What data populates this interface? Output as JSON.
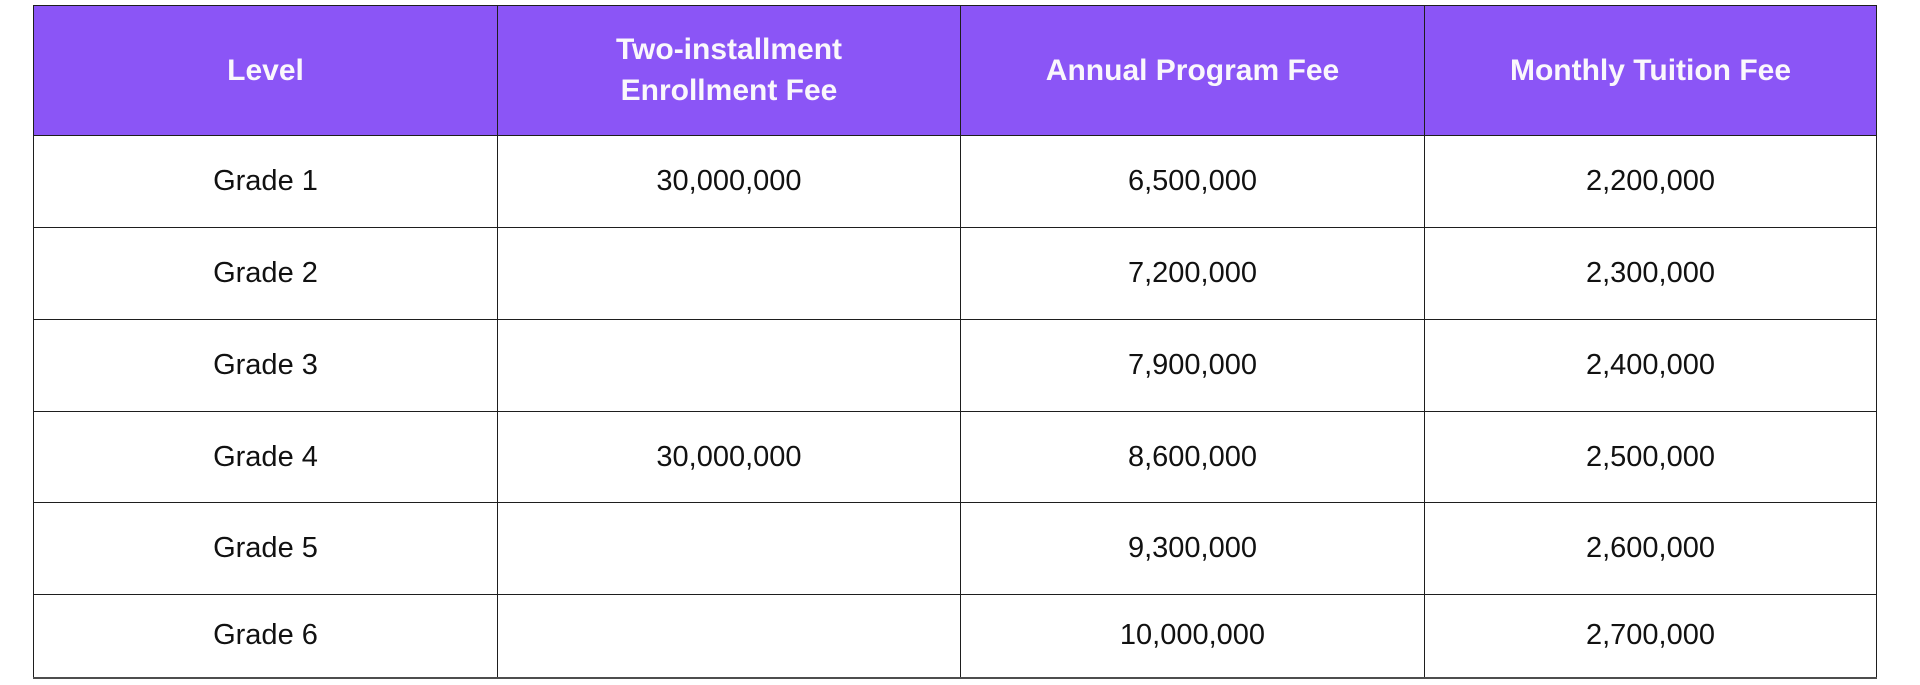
{
  "chart_data": {
    "type": "table",
    "title": "",
    "columns": [
      "Level",
      "Two-installment Enrollment Fee",
      "Annual Program Fee",
      "Monthly Tuition Fee"
    ],
    "rows": [
      [
        "Grade 1",
        "30,000,000",
        "6,500,000",
        "2,200,000"
      ],
      [
        "Grade 2",
        "",
        "7,200,000",
        "2,300,000"
      ],
      [
        "Grade 3",
        "",
        "7,900,000",
        "2,400,000"
      ],
      [
        "Grade 4",
        "30,000,000",
        "8,600,000",
        "2,500,000"
      ],
      [
        "Grade 5",
        "",
        "9,300,000",
        "2,600,000"
      ],
      [
        "Grade 6",
        "",
        "10,000,000",
        "2,700,000"
      ]
    ],
    "colors": {
      "header_bg": "#8B55F6",
      "header_text": "#FAF7FC",
      "body_text": "#111111",
      "border": "#1E1E1E",
      "page_bg": "#FFFFFF"
    },
    "layout": {
      "grid": "on",
      "header_rows": 1,
      "alignment": "center"
    }
  }
}
